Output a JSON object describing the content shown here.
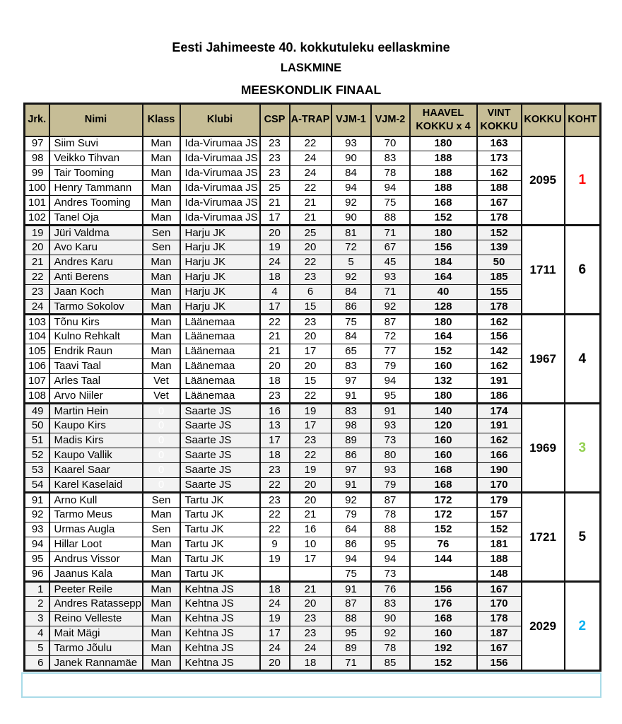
{
  "title": {
    "line1": "Eesti Jahimeeste 40. kokkutuleku eellaskmine",
    "line2": "LASKMINE",
    "line3": "MEESKONDLIK FINAAL"
  },
  "colors": {
    "header_bg": "#c6bd96",
    "zebra_gray": "#f2f2f2",
    "grid": "#141414",
    "selection_border": "#a9dbe8",
    "rank_red": "#ff0000",
    "rank_green": "#92d050",
    "rank_cyan": "#00b0f0",
    "rank_black": "#000000"
  },
  "table": {
    "columns": [
      "Jrk.",
      "Nimi",
      "Klass",
      "Klubi",
      "CSP",
      "A-TRAP",
      "VJM-1",
      "VJM-2",
      "HAAVEL\nKOKKU x 4",
      "VINT\nKOKKU",
      "KOKKU",
      "KOHT"
    ],
    "teams": [
      {
        "club": "Ida-Virumaa JS",
        "kokku": "2095",
        "koht": "1",
        "koht_color": "#ff0000",
        "zebra": "white",
        "klass_faint": false,
        "rows": [
          {
            "jrk": "97",
            "nimi": "Siim Suvi",
            "klass": "Man",
            "csp": "23",
            "atrap": "22",
            "vjm1": "93",
            "vjm2": "70",
            "haavel": "180",
            "vint": "163"
          },
          {
            "jrk": "98",
            "nimi": "Veikko Tihvan",
            "klass": "Man",
            "csp": "23",
            "atrap": "24",
            "vjm1": "90",
            "vjm2": "83",
            "haavel": "188",
            "vint": "173"
          },
          {
            "jrk": "99",
            "nimi": "Tair Tooming",
            "klass": "Man",
            "csp": "23",
            "atrap": "24",
            "vjm1": "84",
            "vjm2": "78",
            "haavel": "188",
            "vint": "162"
          },
          {
            "jrk": "100",
            "nimi": "Henry Tammann",
            "klass": "Man",
            "csp": "25",
            "atrap": "22",
            "vjm1": "94",
            "vjm2": "94",
            "haavel": "188",
            "vint": "188"
          },
          {
            "jrk": "101",
            "nimi": "Andres Tooming",
            "klass": "Man",
            "csp": "21",
            "atrap": "21",
            "vjm1": "92",
            "vjm2": "75",
            "haavel": "168",
            "vint": "167"
          },
          {
            "jrk": "102",
            "nimi": "Tanel Oja",
            "klass": "Man",
            "csp": "17",
            "atrap": "21",
            "vjm1": "90",
            "vjm2": "88",
            "haavel": "152",
            "vint": "178"
          }
        ]
      },
      {
        "club": "Harju JK",
        "kokku": "1711",
        "koht": "6",
        "koht_color": "#000000",
        "zebra": "gray",
        "klass_faint": false,
        "rows": [
          {
            "jrk": "19",
            "nimi": "Jüri Valdma",
            "klass": "Sen",
            "csp": "20",
            "atrap": "25",
            "vjm1": "81",
            "vjm2": "71",
            "haavel": "180",
            "vint": "152"
          },
          {
            "jrk": "20",
            "nimi": "Avo Karu",
            "klass": "Sen",
            "csp": "19",
            "atrap": "20",
            "vjm1": "72",
            "vjm2": "67",
            "haavel": "156",
            "vint": "139"
          },
          {
            "jrk": "21",
            "nimi": "Andres Karu",
            "klass": "Man",
            "csp": "24",
            "atrap": "22",
            "vjm1": "5",
            "vjm2": "45",
            "haavel": "184",
            "vint": "50"
          },
          {
            "jrk": "22",
            "nimi": "Anti Berens",
            "klass": "Man",
            "csp": "18",
            "atrap": "23",
            "vjm1": "92",
            "vjm2": "93",
            "haavel": "164",
            "vint": "185"
          },
          {
            "jrk": "23",
            "nimi": "Jaan Koch",
            "klass": "Man",
            "csp": "4",
            "atrap": "6",
            "vjm1": "84",
            "vjm2": "71",
            "haavel": "40",
            "vint": "155"
          },
          {
            "jrk": "24",
            "nimi": "Tarmo Sokolov",
            "klass": "Man",
            "csp": "17",
            "atrap": "15",
            "vjm1": "86",
            "vjm2": "92",
            "haavel": "128",
            "vint": "178"
          }
        ]
      },
      {
        "club": "Läänemaa",
        "kokku": "1967",
        "koht": "4",
        "koht_color": "#000000",
        "zebra": "white",
        "klass_faint": false,
        "rows": [
          {
            "jrk": "103",
            "nimi": "Tõnu Kirs",
            "klass": "Man",
            "csp": "22",
            "atrap": "23",
            "vjm1": "75",
            "vjm2": "87",
            "haavel": "180",
            "vint": "162"
          },
          {
            "jrk": "104",
            "nimi": "Kulno Rehkalt",
            "klass": "Man",
            "csp": "21",
            "atrap": "20",
            "vjm1": "84",
            "vjm2": "72",
            "haavel": "164",
            "vint": "156"
          },
          {
            "jrk": "105",
            "nimi": "Endrik Raun",
            "klass": "Man",
            "csp": "21",
            "atrap": "17",
            "vjm1": "65",
            "vjm2": "77",
            "haavel": "152",
            "vint": "142"
          },
          {
            "jrk": "106",
            "nimi": "Taavi Taal",
            "klass": "Man",
            "csp": "20",
            "atrap": "20",
            "vjm1": "83",
            "vjm2": "79",
            "haavel": "160",
            "vint": "162"
          },
          {
            "jrk": "107",
            "nimi": "Arles Taal",
            "klass": "Vet",
            "csp": "18",
            "atrap": "15",
            "vjm1": "97",
            "vjm2": "94",
            "haavel": "132",
            "vint": "191"
          },
          {
            "jrk": "108",
            "nimi": "Arvo Niiler",
            "klass": "Vet",
            "csp": "23",
            "atrap": "22",
            "vjm1": "91",
            "vjm2": "95",
            "haavel": "180",
            "vint": "186"
          }
        ]
      },
      {
        "club": "Saarte JS",
        "kokku": "1969",
        "koht": "3",
        "koht_color": "#92d050",
        "zebra": "gray",
        "klass_faint": true,
        "rows": [
          {
            "jrk": "49",
            "nimi": "Martin Hein",
            "klass": "0",
            "csp": "16",
            "atrap": "19",
            "vjm1": "83",
            "vjm2": "91",
            "haavel": "140",
            "vint": "174"
          },
          {
            "jrk": "50",
            "nimi": "Kaupo Kirs",
            "klass": "0",
            "csp": "13",
            "atrap": "17",
            "vjm1": "98",
            "vjm2": "93",
            "haavel": "120",
            "vint": "191"
          },
          {
            "jrk": "51",
            "nimi": "Madis Kirs",
            "klass": "0",
            "csp": "17",
            "atrap": "23",
            "vjm1": "89",
            "vjm2": "73",
            "haavel": "160",
            "vint": "162"
          },
          {
            "jrk": "52",
            "nimi": "Kaupo Vallik",
            "klass": "0",
            "csp": "18",
            "atrap": "22",
            "vjm1": "86",
            "vjm2": "80",
            "haavel": "160",
            "vint": "166"
          },
          {
            "jrk": "53",
            "nimi": "Kaarel Saar",
            "klass": "0",
            "csp": "23",
            "atrap": "19",
            "vjm1": "97",
            "vjm2": "93",
            "haavel": "168",
            "vint": "190"
          },
          {
            "jrk": "54",
            "nimi": "Karel Kaselaid",
            "klass": "0",
            "csp": "22",
            "atrap": "20",
            "vjm1": "91",
            "vjm2": "79",
            "haavel": "168",
            "vint": "170"
          }
        ]
      },
      {
        "club": "Tartu JK",
        "kokku": "1721",
        "koht": "5",
        "koht_color": "#000000",
        "zebra": "white",
        "klass_faint": false,
        "rows": [
          {
            "jrk": "91",
            "nimi": "Arno Kull",
            "klass": "Sen",
            "csp": "23",
            "atrap": "20",
            "vjm1": "92",
            "vjm2": "87",
            "haavel": "172",
            "vint": "179"
          },
          {
            "jrk": "92",
            "nimi": "Tarmo Meus",
            "klass": "Man",
            "csp": "22",
            "atrap": "21",
            "vjm1": "79",
            "vjm2": "78",
            "haavel": "172",
            "vint": "157"
          },
          {
            "jrk": "93",
            "nimi": "Urmas Augla",
            "klass": "Sen",
            "csp": "22",
            "atrap": "16",
            "vjm1": "64",
            "vjm2": "88",
            "haavel": "152",
            "vint": "152"
          },
          {
            "jrk": "94",
            "nimi": "Hillar Loot",
            "klass": "Man",
            "csp": "9",
            "atrap": "10",
            "vjm1": "86",
            "vjm2": "95",
            "haavel": "76",
            "vint": "181"
          },
          {
            "jrk": "95",
            "nimi": "Andrus Vissor",
            "klass": "Man",
            "csp": "19",
            "atrap": "17",
            "vjm1": "94",
            "vjm2": "94",
            "haavel": "144",
            "vint": "188"
          },
          {
            "jrk": "96",
            "nimi": "Jaanus Kala",
            "klass": "Man",
            "csp": "",
            "atrap": "",
            "vjm1": "75",
            "vjm2": "73",
            "haavel": "",
            "vint": "148"
          }
        ]
      },
      {
        "club": "Kehtna JS",
        "kokku": "2029",
        "koht": "2",
        "koht_color": "#00b0f0",
        "zebra": "gray",
        "klass_faint": false,
        "rows": [
          {
            "jrk": "1",
            "nimi": "Peeter Reile",
            "klass": "Man",
            "csp": "18",
            "atrap": "21",
            "vjm1": "91",
            "vjm2": "76",
            "haavel": "156",
            "vint": "167"
          },
          {
            "jrk": "2",
            "nimi": "Andres Ratassepp",
            "klass": "Man",
            "csp": "24",
            "atrap": "20",
            "vjm1": "87",
            "vjm2": "83",
            "haavel": "176",
            "vint": "170"
          },
          {
            "jrk": "3",
            "nimi": "Reino Velleste",
            "klass": "Man",
            "csp": "19",
            "atrap": "23",
            "vjm1": "88",
            "vjm2": "90",
            "haavel": "168",
            "vint": "178"
          },
          {
            "jrk": "4",
            "nimi": "Mait Mägi",
            "klass": "Man",
            "csp": "17",
            "atrap": "23",
            "vjm1": "95",
            "vjm2": "92",
            "haavel": "160",
            "vint": "187"
          },
          {
            "jrk": "5",
            "nimi": "Tarmo Jõulu",
            "klass": "Man",
            "csp": "24",
            "atrap": "24",
            "vjm1": "89",
            "vjm2": "78",
            "haavel": "192",
            "vint": "167"
          },
          {
            "jrk": "6",
            "nimi": "Janek Rannamäe",
            "klass": "Man",
            "csp": "20",
            "atrap": "18",
            "vjm1": "71",
            "vjm2": "85",
            "haavel": "152",
            "vint": "156"
          }
        ]
      }
    ]
  }
}
